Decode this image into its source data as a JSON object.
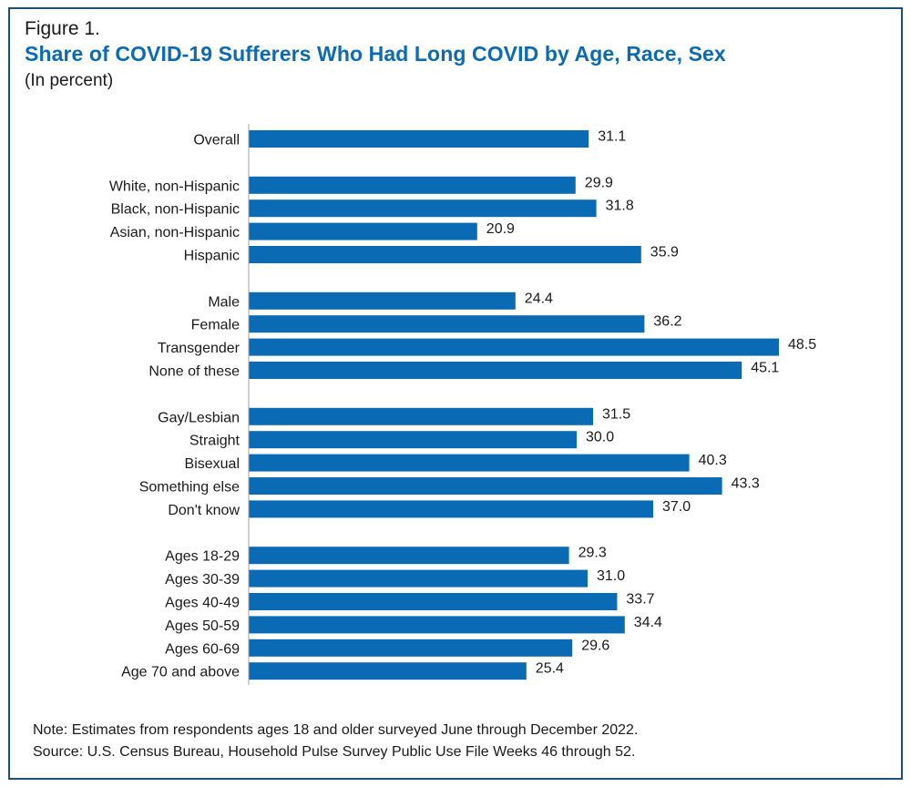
{
  "figure_label": "Figure 1.",
  "title": "Share of COVID-19 Sufferers Who Had Long COVID by Age, Race, Sex",
  "subtitle": "(In percent)",
  "note": "Note: Estimates from respondents ages 18 and older surveyed June through December 2022.",
  "source": "Source: U.S. Census Bureau, Household Pulse Survey Public Use File Weeks 46 through 52.",
  "colors": {
    "bar": "#0b6ab4",
    "title": "#0b6ab4",
    "border": "#1f4e79"
  },
  "chart_data": {
    "type": "bar",
    "orientation": "horizontal",
    "title": "Share of COVID-19 Sufferers Who Had Long COVID by Age, Race, Sex",
    "xlabel": "",
    "ylabel": "",
    "xlim": [
      0,
      50
    ],
    "grid": false,
    "groups": [
      {
        "items": [
          {
            "label": "Overall",
            "value": 31.1
          }
        ]
      },
      {
        "items": [
          {
            "label": "White, non-Hispanic",
            "value": 29.9
          },
          {
            "label": "Black, non-Hispanic",
            "value": 31.8
          },
          {
            "label": "Asian, non-Hispanic",
            "value": 20.9
          },
          {
            "label": "Hispanic",
            "value": 35.9
          }
        ]
      },
      {
        "items": [
          {
            "label": "Male",
            "value": 24.4
          },
          {
            "label": "Female",
            "value": 36.2
          },
          {
            "label": "Transgender",
            "value": 48.5
          },
          {
            "label": "None of these",
            "value": 45.1
          }
        ]
      },
      {
        "items": [
          {
            "label": "Gay/Lesbian",
            "value": 31.5
          },
          {
            "label": "Straight",
            "value": 30.0
          },
          {
            "label": "Bisexual",
            "value": 40.3
          },
          {
            "label": "Something else",
            "value": 43.3
          },
          {
            "label": "Don't know",
            "value": 37.0
          }
        ]
      },
      {
        "items": [
          {
            "label": "Ages 18-29",
            "value": 29.3
          },
          {
            "label": "Ages 30-39",
            "value": 31.0
          },
          {
            "label": "Ages 40-49",
            "value": 33.7
          },
          {
            "label": "Ages 50-59",
            "value": 34.4
          },
          {
            "label": "Ages 60-69",
            "value": 29.6
          },
          {
            "label": "Age 70 and above",
            "value": 25.4
          }
        ]
      }
    ]
  }
}
